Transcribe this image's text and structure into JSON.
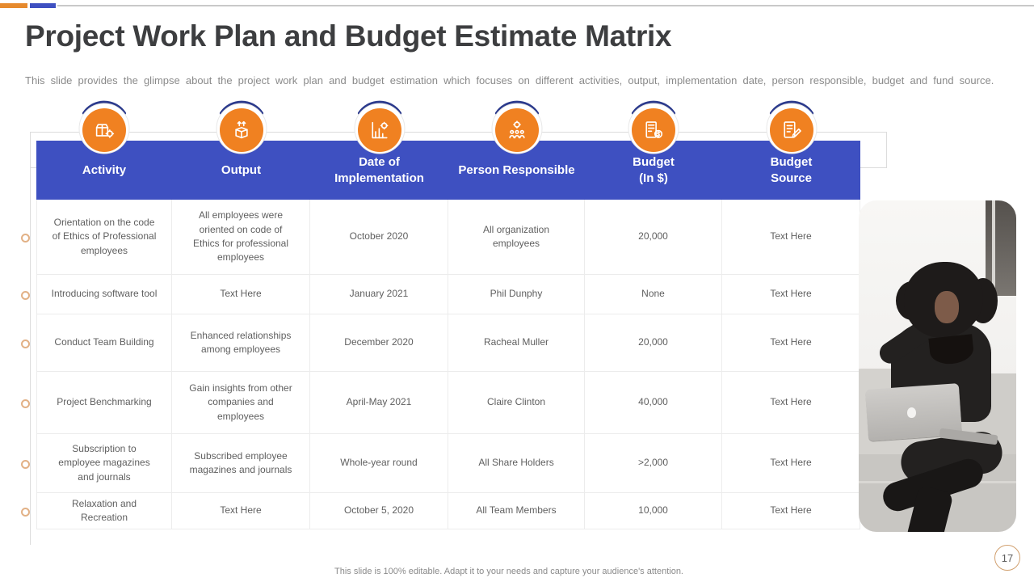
{
  "slide": {
    "title": "Project Work Plan and Budget Estimate Matrix",
    "subtitle": "This slide provides the glimpse about the project work plan and budget estimation which focuses on different activities, output, implementation date, person responsible, budget and fund source.",
    "footer": "This slide is 100% editable. Adapt it to your needs and capture your audience's attention.",
    "page_number": "17"
  },
  "table": {
    "columns": [
      {
        "label": "Activity",
        "icon": "production-box-gear-icon"
      },
      {
        "label": "Output",
        "icon": "open-box-arrows-icon"
      },
      {
        "label": "Date of\nImplementation",
        "icon": "chart-gear-icon"
      },
      {
        "label": "Person Responsible",
        "icon": "team-gear-icon"
      },
      {
        "label": "Budget\n(In $)",
        "icon": "budget-calculator-icon"
      },
      {
        "label": "Budget\nSource",
        "icon": "budget-document-icon"
      }
    ],
    "rows": [
      [
        "Orientation on the code of Ethics of Professional employees",
        "All employees were oriented on code of Ethics for professional employees",
        "October 2020",
        "All organization employees",
        "20,000",
        "Text Here"
      ],
      [
        "Introducing software tool",
        "Text Here",
        "January 2021",
        "Phil Dunphy",
        "None",
        "Text Here"
      ],
      [
        "Conduct Team Building",
        "Enhanced relationships among employees",
        "December 2020",
        "Racheal Muller",
        "20,000",
        "Text Here"
      ],
      [
        "Project Benchmarking",
        "Gain insights from other companies and employees",
        "April-May 2021",
        "Claire Clinton",
        "40,000",
        "Text Here"
      ],
      [
        "Subscription to employee magazines and journals",
        "Subscribed employee magazines and journals",
        "Whole-year round",
        "All Share Holders",
        ">2,000",
        "Text Here"
      ],
      [
        "Relaxation and Recreation",
        "Text Here",
        "October 5, 2020",
        "All Team Members",
        "10,000",
        "Text Here"
      ]
    ]
  },
  "photo": {
    "description": "Woman with curly hair sitting on a couch working on a laptop"
  },
  "colors": {
    "header_blue": "#3E50C1",
    "arc_navy": "#2B3A8C",
    "icon_orange": "#F08121",
    "accent_orange": "#E68A2E",
    "bullet_ring": "#E2B186",
    "page_circle_border": "#D1A06F"
  }
}
